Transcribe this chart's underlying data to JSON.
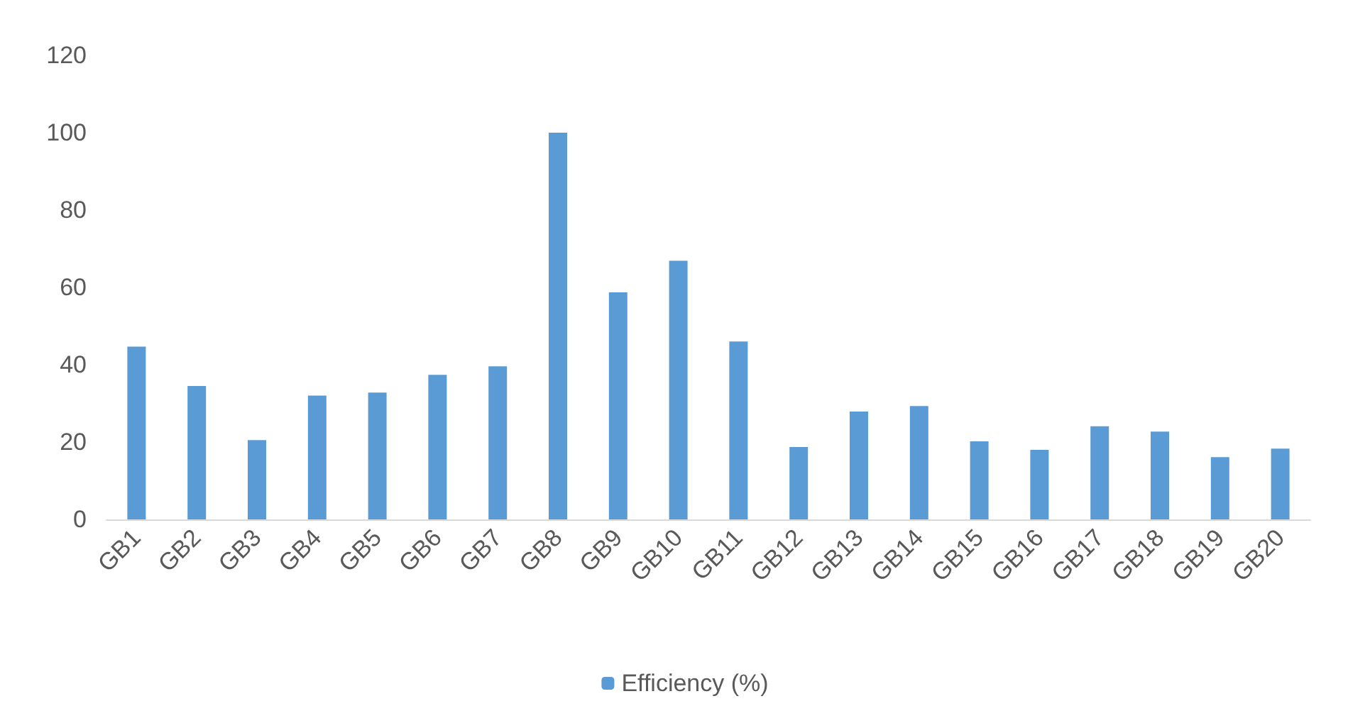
{
  "chart_data": {
    "type": "bar",
    "categories": [
      "GB1",
      "GB2",
      "GB3",
      "GB4",
      "GB5",
      "GB6",
      "GB7",
      "GB8",
      "GB9",
      "GB10",
      "GB11",
      "GB12",
      "GB13",
      "GB14",
      "GB15",
      "GB16",
      "GB17",
      "GB18",
      "GB19",
      "GB20"
    ],
    "series": [
      {
        "name": "Efficiency (%)",
        "color": "#5b9bd5",
        "values": [
          44.7,
          34.5,
          20.5,
          32,
          32.8,
          37.4,
          39.6,
          100,
          58.7,
          66.9,
          46,
          18.7,
          27.9,
          29.3,
          20.2,
          18,
          24.1,
          22.7,
          16.1,
          18.3
        ]
      }
    ],
    "ylim": [
      0,
      120
    ],
    "yticks": [
      0,
      20,
      40,
      60,
      80,
      100,
      120
    ],
    "grid": false,
    "legend": "bottom"
  }
}
